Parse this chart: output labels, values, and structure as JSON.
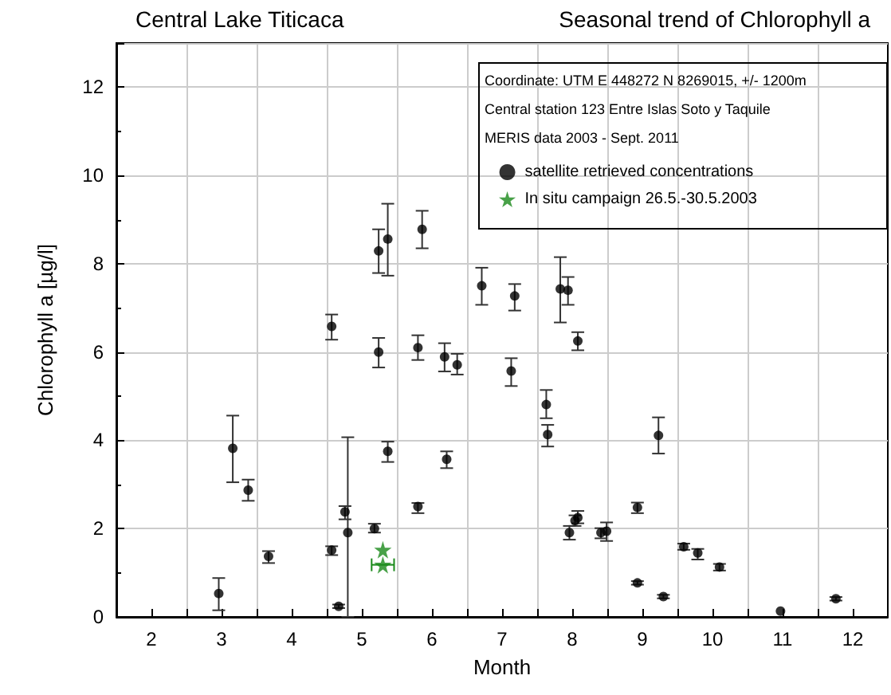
{
  "chart_data": {
    "type": "scatter",
    "title": "Central Lake Titicaca",
    "subtitle": "Seasonal trend of Chlorophyll a",
    "xlabel": "Month",
    "ylabel": "Chlorophyll a [µg/l]",
    "annotations": [
      "Coordinate: UTM E 448272 N 8269015, +/- 1200m",
      "Central station 123 Entre Islas Soto y Taquile",
      "MERIS data 2003 - Sept. 2011"
    ],
    "xlim": [
      1.5,
      12.5
    ],
    "xticks": [
      2,
      3,
      4,
      5,
      6,
      7,
      8,
      9,
      10,
      11,
      12,
      {
        "value": 2.5,
        "label": null
      },
      {
        "value": 3.5,
        "label": null
      },
      {
        "value": 4.5,
        "label": null
      },
      {
        "value": 5.5,
        "label": null
      },
      {
        "value": 6.5,
        "label": null
      },
      {
        "value": 7.5,
        "label": null
      },
      {
        "value": 8.5,
        "label": null
      },
      {
        "value": 9.5,
        "label": null
      },
      {
        "value": 10.5,
        "label": null
      },
      {
        "value": 11.5,
        "label": null
      }
    ],
    "ylim": [
      0,
      13
    ],
    "yticks": [
      0,
      2,
      4,
      6,
      8,
      10,
      12
    ],
    "grid": true,
    "legend": "top right",
    "marker": "circle",
    "series": [
      {
        "name": "satellite retrieved concentrations",
        "color": "#000000",
        "x": [
          2.96,
          3.16,
          3.38,
          3.67,
          4.57,
          4.57,
          4.67,
          4.76,
          4.8,
          5.18,
          5.24,
          5.24,
          5.37,
          5.37,
          5.8,
          5.86,
          5.8,
          6.18,
          6.21,
          6.36,
          7.13,
          6.71,
          7.18,
          7.83,
          7.94,
          8.08,
          7.63,
          7.65,
          7.96,
          8.04,
          8.08,
          8.41,
          8.49,
          8.93,
          8.93,
          9.23,
          9.3,
          9.59,
          9.79,
          10.1,
          10.97,
          11.76
        ],
        "values": [
          0.53,
          3.82,
          2.87,
          1.37,
          6.58,
          1.51,
          0.24,
          2.38,
          1.91,
          2.0,
          6.0,
          8.29,
          8.56,
          3.75,
          6.1,
          8.78,
          2.5,
          5.89,
          3.57,
          5.71,
          5.57,
          7.5,
          7.27,
          7.43,
          7.4,
          6.25,
          4.81,
          4.13,
          1.91,
          2.18,
          2.25,
          1.91,
          1.94,
          2.48,
          0.77,
          4.11,
          0.46,
          1.59,
          1.45,
          1.13,
          0.13,
          0.41
        ],
        "errors": [
          [
            0.15,
            0.88
          ],
          [
            3.05,
            4.56
          ],
          [
            2.63,
            3.11
          ],
          [
            1.22,
            1.49
          ],
          [
            6.28,
            6.85
          ],
          [
            1.4,
            1.6
          ],
          [
            0.2,
            0.28
          ],
          [
            2.21,
            2.51
          ],
          [
            0,
            4.07
          ],
          [
            1.91,
            2.11
          ],
          [
            5.65,
            6.32
          ],
          [
            7.79,
            8.78
          ],
          [
            7.73,
            9.36
          ],
          [
            3.51,
            3.97
          ],
          [
            5.82,
            6.38
          ],
          [
            8.35,
            9.2
          ],
          [
            2.35,
            2.58
          ],
          [
            5.56,
            6.2
          ],
          [
            3.37,
            3.75
          ],
          [
            5.49,
            5.96
          ],
          [
            5.23,
            5.86
          ],
          [
            7.07,
            7.91
          ],
          [
            6.94,
            7.54
          ],
          [
            6.67,
            8.15
          ],
          [
            7.07,
            7.7
          ],
          [
            6.04,
            6.45
          ],
          [
            4.5,
            5.14
          ],
          [
            3.86,
            4.35
          ],
          [
            1.75,
            2.06
          ],
          [
            2.06,
            2.3
          ],
          [
            2.12,
            2.4
          ],
          [
            1.78,
            2.01
          ],
          [
            1.72,
            2.14
          ],
          [
            2.35,
            2.59
          ],
          [
            0.73,
            0.81
          ],
          [
            3.7,
            4.52
          ],
          [
            0.42,
            0.5
          ],
          [
            1.52,
            1.66
          ],
          [
            1.3,
            1.54
          ],
          [
            1.05,
            1.2
          ],
          null,
          [
            0.37,
            0.45
          ]
        ]
      },
      {
        "name": "In situ campaign 26.5.-30.5.2003",
        "color": "#1a8a1a",
        "marker": "star",
        "x": [
          5.3,
          5.3
        ],
        "values": [
          1.52,
          1.18
        ],
        "xerrors": [
          null,
          [
            5.14,
            5.46
          ]
        ]
      }
    ]
  }
}
